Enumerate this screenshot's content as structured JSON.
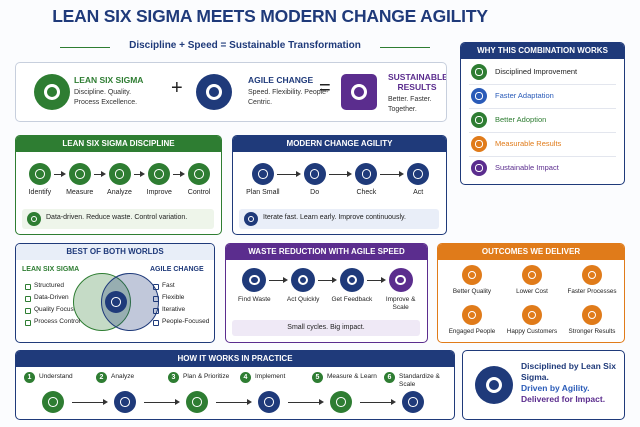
{
  "header": {
    "title": "LEAN SIX SIGMA MEETS MODERN CHANGE AGILITY",
    "subtitle": "Discipline + Speed = Sustainable Transformation"
  },
  "equation": {
    "terms": [
      {
        "title": "LEAN SIX SIGMA",
        "text": "Discipline. Quality. Process Excellence."
      },
      {
        "title": "AGILE CHANGE",
        "text": "Speed. Flexibility. People-Centric."
      },
      {
        "title": "SUSTAINABLE RESULTS",
        "text": "Better. Faster. Together."
      }
    ],
    "operators": [
      "+",
      "="
    ]
  },
  "why": {
    "title": "WHY THIS COMBINATION WORKS",
    "items": [
      "Disciplined Improvement",
      "Faster Adaptation",
      "Better Adoption",
      "Measurable Results",
      "Sustainable Impact"
    ]
  },
  "lss_discipline": {
    "title": "LEAN SIX SIGMA DISCIPLINE",
    "steps": [
      "Identify",
      "Measure",
      "Analyze",
      "Improve",
      "Control"
    ],
    "note": "Data-driven. Reduce waste. Control variation."
  },
  "change_agility": {
    "title": "MODERN CHANGE AGILITY",
    "steps": [
      "Plan Small",
      "Do",
      "Check",
      "Act"
    ],
    "note": "Iterate fast. Learn early. Improve continuously."
  },
  "best_of_both": {
    "title": "BEST OF BOTH WORLDS",
    "left": {
      "title": "LEAN SIX SIGMA",
      "items": [
        "Structured",
        "Data-Driven",
        "Quality Focus",
        "Process Control"
      ]
    },
    "right": {
      "title": "AGILE CHANGE",
      "items": [
        "Fast",
        "Flexible",
        "Iterative",
        "People-Focused"
      ]
    }
  },
  "waste_reduction": {
    "title": "WASTE REDUCTION WITH AGILE SPEED",
    "steps": [
      "Find Waste",
      "Act Quickly",
      "Get Feedback",
      "Improve & Scale"
    ],
    "note": "Small cycles. Big impact."
  },
  "outcomes": {
    "title": "OUTCOMES WE DELIVER",
    "items": [
      "Better Quality",
      "Lower Cost",
      "Faster Processes",
      "Engaged People",
      "Happy Customers",
      "Stronger Results"
    ]
  },
  "practice": {
    "title": "HOW IT WORKS IN PRACTICE",
    "steps": [
      {
        "number": "1",
        "label": "Understand"
      },
      {
        "number": "2",
        "label": "Analyze"
      },
      {
        "number": "3",
        "label": "Plan & Prioritize"
      },
      {
        "number": "4",
        "label": "Implement"
      },
      {
        "number": "5",
        "label": "Measure & Learn"
      },
      {
        "number": "6",
        "label": "Standardize & Scale"
      }
    ]
  },
  "summary": {
    "lines": [
      "Disciplined by Lean Six Sigma.",
      "Driven by Agility.",
      "Delivered for Impact."
    ]
  }
}
